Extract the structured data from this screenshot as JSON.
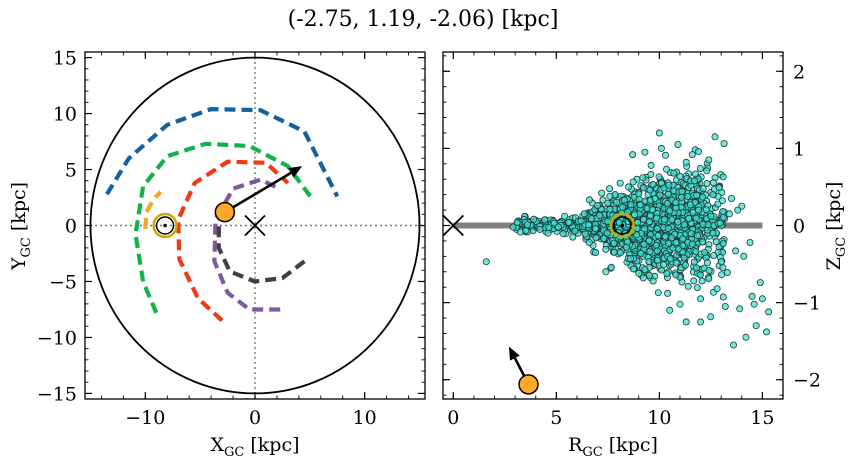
{
  "title": "(-2.75, 1.19, -2.06) [kpc]",
  "colors": {
    "spiral_blue": "#1461a0",
    "spiral_green": "#12b24a",
    "spiral_red": "#ee3a12",
    "spiral_purple": "#7e5a9b",
    "spiral_gray": "#404040",
    "spiral_orange": "#f5a623",
    "star_fill": "#ffa726",
    "sun_ring": "#c8aa00",
    "scatter_fill": "#40e0d0",
    "disk_band": "#808080"
  },
  "chart_data": [
    {
      "type": "scatter",
      "panel": "left",
      "xlabel_main": "X",
      "xlabel_sub": "GC",
      "xlabel_unit": " [kpc]",
      "ylabel_main": "Y",
      "ylabel_sub": "GC",
      "ylabel_unit": " [kpc]",
      "xlim": [
        -15.5,
        15.5
      ],
      "ylim": [
        -15.5,
        15.5
      ],
      "xticks": [
        -10,
        0,
        10
      ],
      "xtick_labels": [
        "−10",
        "0",
        "10"
      ],
      "yticks": [
        -15,
        -10,
        -5,
        0,
        5,
        10,
        15
      ],
      "ytick_labels": [
        "−15",
        "−10",
        "−5",
        "0",
        "5",
        "10",
        "15"
      ],
      "boundary_radius": 15,
      "galactic_center": [
        0,
        0
      ],
      "sun_position": [
        -8.2,
        0
      ],
      "object_position": [
        -2.75,
        1.19
      ],
      "velocity_arrow": {
        "from": [
          -2.75,
          1.19
        ],
        "to": [
          4.3,
          5.3
        ]
      },
      "spiral_arms": [
        {
          "color": "spiral_blue",
          "points": [
            [
              -13.5,
              2.8
            ],
            [
              -11.5,
              6.0
            ],
            [
              -8.0,
              9.0
            ],
            [
              -4.0,
              10.4
            ],
            [
              0.5,
              10.3
            ],
            [
              4.5,
              8.4
            ],
            [
              7.5,
              2.6
            ]
          ]
        },
        {
          "color": "spiral_green",
          "points": [
            [
              -9.0,
              -7.8
            ],
            [
              -10.2,
              -5.0
            ],
            [
              -10.9,
              -0.8
            ],
            [
              -10.2,
              3.5
            ],
            [
              -8.0,
              6.2
            ],
            [
              -4.5,
              7.3
            ],
            [
              -0.5,
              7.1
            ],
            [
              3.0,
              5.3
            ],
            [
              5.2,
              2.4
            ]
          ]
        },
        {
          "color": "spiral_red",
          "points": [
            [
              -3.0,
              -8.5
            ],
            [
              -5.2,
              -6.5
            ],
            [
              -6.9,
              -3.0
            ],
            [
              -7.0,
              0.5
            ],
            [
              -5.5,
              3.8
            ],
            [
              -2.5,
              5.7
            ],
            [
              1.0,
              5.6
            ],
            [
              3.0,
              3.8
            ]
          ]
        },
        {
          "color": "spiral_purple",
          "points": [
            [
              2.3,
              -7.5
            ],
            [
              -0.5,
              -7.5
            ],
            [
              -2.5,
              -6.0
            ],
            [
              -3.7,
              -3.2
            ],
            [
              -3.6,
              0.5
            ],
            [
              -2.0,
              3.3
            ],
            [
              0.5,
              4.1
            ],
            [
              2.2,
              3.3
            ]
          ]
        },
        {
          "color": "spiral_gray",
          "points": [
            [
              4.5,
              -3.2
            ],
            [
              2.5,
              -4.7
            ],
            [
              0.0,
              -5.0
            ],
            [
              -2.3,
              -4.1
            ],
            [
              -3.3,
              -2.0
            ],
            [
              -3.3,
              0.5
            ]
          ]
        },
        {
          "color": "spiral_orange",
          "points": [
            [
              -10.0,
              -0.3
            ],
            [
              -9.9,
              1.2
            ],
            [
              -9.2,
              2.4
            ],
            [
              -8.6,
              3.0
            ]
          ]
        }
      ]
    },
    {
      "type": "scatter",
      "panel": "right",
      "xlabel_main": "R",
      "xlabel_sub": "GC",
      "xlabel_unit": " [kpc]",
      "ylabel_main": "Z",
      "ylabel_sub": "GC",
      "ylabel_unit": " [kpc]",
      "xlim": [
        -0.5,
        16.0
      ],
      "ylim": [
        -2.25,
        2.25
      ],
      "xticks": [
        0,
        5,
        10,
        15
      ],
      "xtick_labels": [
        "0",
        "5",
        "10",
        "15"
      ],
      "yticks": [
        -2,
        -1,
        0,
        1,
        2
      ],
      "ytick_labels": [
        "−2",
        "−1",
        "0",
        "1",
        "2"
      ],
      "yaxis_position": "right",
      "disk_band": {
        "x": [
          0,
          15
        ],
        "y": 0
      },
      "galactic_center": [
        0,
        0
      ],
      "sun_position": [
        8.2,
        0
      ],
      "object_position": [
        3.65,
        -2.06
      ],
      "velocity_arrow": {
        "from": [
          3.65,
          -2.06
        ],
        "to": [
          2.7,
          -1.57
        ]
      },
      "sample_points": [
        [
          1.6,
          -0.47
        ],
        [
          2.9,
          -0.02
        ],
        [
          3.6,
          0.01
        ],
        [
          4.2,
          -0.05
        ],
        [
          4.9,
          0.03
        ],
        [
          5.1,
          -0.02
        ],
        [
          5.6,
          0.04
        ],
        [
          5.9,
          -0.07
        ],
        [
          6.2,
          0.06
        ],
        [
          6.4,
          -0.11
        ],
        [
          6.7,
          0.09
        ],
        [
          6.9,
          -0.04
        ],
        [
          7.1,
          0.13
        ],
        [
          7.3,
          -0.17
        ],
        [
          7.5,
          0.05
        ],
        [
          7.6,
          0.21
        ],
        [
          7.8,
          -0.23
        ],
        [
          7.4,
          -0.31
        ],
        [
          7.5,
          0.29
        ],
        [
          7.4,
          -0.6
        ],
        [
          7.6,
          0.38
        ],
        [
          7.9,
          0.12
        ],
        [
          8.0,
          -0.09
        ],
        [
          8.3,
          0.33
        ],
        [
          8.4,
          -0.28
        ],
        [
          8.5,
          0.5
        ],
        [
          8.6,
          -0.43
        ],
        [
          8.8,
          0.14
        ],
        [
          8.9,
          -0.12
        ],
        [
          9.0,
          0.41
        ],
        [
          9.1,
          -0.36
        ],
        [
          9.2,
          0.62
        ],
        [
          9.3,
          -0.57
        ],
        [
          9.4,
          0.22
        ],
        [
          9.5,
          -0.2
        ],
        [
          9.6,
          0.78
        ],
        [
          9.7,
          -0.72
        ],
        [
          9.8,
          0.35
        ],
        [
          9.9,
          -0.33
        ],
        [
          10.0,
          1.2
        ],
        [
          10.1,
          0.55
        ],
        [
          10.2,
          -0.51
        ],
        [
          10.3,
          0.91
        ],
        [
          10.4,
          -0.88
        ],
        [
          10.5,
          0.19
        ],
        [
          10.6,
          -0.16
        ],
        [
          10.7,
          0.68
        ],
        [
          10.8,
          -0.64
        ],
        [
          10.9,
          1.05
        ],
        [
          11.0,
          -1.02
        ],
        [
          11.1,
          0.44
        ],
        [
          11.2,
          -0.42
        ],
        [
          11.3,
          0.82
        ],
        [
          11.4,
          -0.79
        ],
        [
          11.5,
          0.27
        ],
        [
          11.6,
          -0.24
        ],
        [
          11.7,
          0.58
        ],
        [
          11.8,
          -0.55
        ],
        [
          11.9,
          0.96
        ],
        [
          12.0,
          -0.95
        ],
        [
          12.1,
          0.37
        ],
        [
          12.2,
          -0.35
        ],
        [
          12.3,
          0.71
        ],
        [
          12.4,
          -0.69
        ],
        [
          12.5,
          0.12
        ],
        [
          12.6,
          -0.1
        ],
        [
          12.7,
          1.15
        ],
        [
          12.8,
          -0.82
        ],
        [
          12.9,
          0.49
        ],
        [
          13.0,
          -0.47
        ],
        [
          13.1,
          0.63
        ],
        [
          13.3,
          -0.61
        ],
        [
          13.5,
          0.35
        ],
        [
          13.6,
          -1.55
        ],
        [
          13.7,
          -0.33
        ],
        [
          13.9,
          -1.08
        ],
        [
          14.0,
          0.25
        ],
        [
          14.2,
          -1.45
        ],
        [
          14.4,
          -0.22
        ],
        [
          14.5,
          -0.92
        ],
        [
          14.7,
          -1.3
        ],
        [
          14.9,
          -0.74
        ],
        [
          15.0,
          -0.95
        ],
        [
          15.3,
          -1.12
        ],
        [
          15.2,
          -1.38
        ],
        [
          14.6,
          -1.02
        ],
        [
          9.0,
          -0.62
        ],
        [
          8.1,
          0.55
        ],
        [
          8.7,
          0.92
        ],
        [
          10.5,
          -1.1
        ],
        [
          11.3,
          -1.25
        ],
        [
          12.0,
          -1.25
        ],
        [
          13.2,
          -1.05
        ],
        [
          6.9,
          -0.35
        ],
        [
          7.2,
          0.42
        ],
        [
          10.1,
          1.0
        ],
        [
          9.3,
          0.95
        ],
        [
          11.6,
          0.92
        ],
        [
          12.4,
          0.85
        ],
        [
          7.0,
          0.26
        ],
        [
          6.6,
          -0.22
        ],
        [
          5.4,
          0.12
        ],
        [
          5.8,
          -0.15
        ],
        [
          4.6,
          -0.1
        ],
        [
          3.9,
          0.08
        ],
        [
          10.8,
          0.3
        ],
        [
          11.9,
          0.2
        ],
        [
          12.6,
          0.4
        ],
        [
          13.4,
          0.15
        ],
        [
          13.8,
          0.2
        ],
        [
          14.1,
          -0.4
        ]
      ]
    }
  ]
}
